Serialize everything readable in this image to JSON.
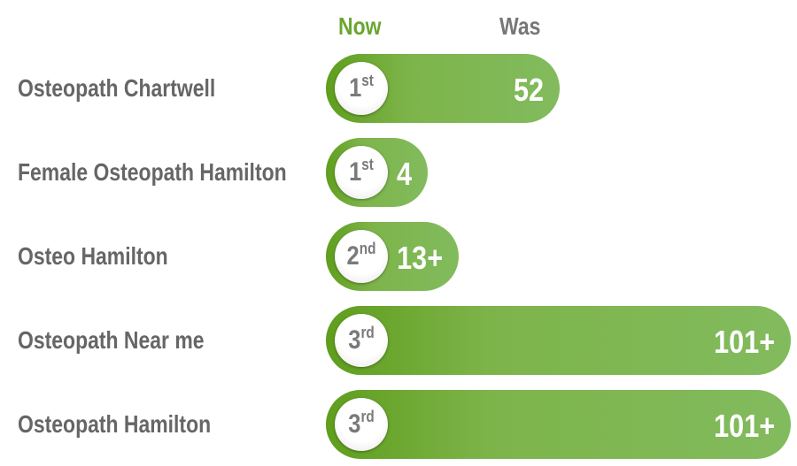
{
  "chart_data": {
    "type": "table",
    "headers": {
      "now": "Now",
      "was": "Was"
    },
    "colors": {
      "bar": "#7db44a",
      "now_header": "#6aa62f",
      "text": "#666666"
    },
    "rows": [
      {
        "keyword": "Osteopath Chartwell",
        "now_num": "1",
        "now_suffix": "st",
        "was": "52"
      },
      {
        "keyword": "Female Osteopath Hamilton",
        "now_num": "1",
        "now_suffix": "st",
        "was": "4"
      },
      {
        "keyword": "Osteo Hamilton",
        "now_num": "2",
        "now_suffix": "nd",
        "was": "13+"
      },
      {
        "keyword": "Osteopath Near me",
        "now_num": "3",
        "now_suffix": "rd",
        "was": "101+"
      },
      {
        "keyword": "Osteopath Hamilton",
        "now_num": "3",
        "now_suffix": "rd",
        "was": "101+"
      }
    ]
  }
}
